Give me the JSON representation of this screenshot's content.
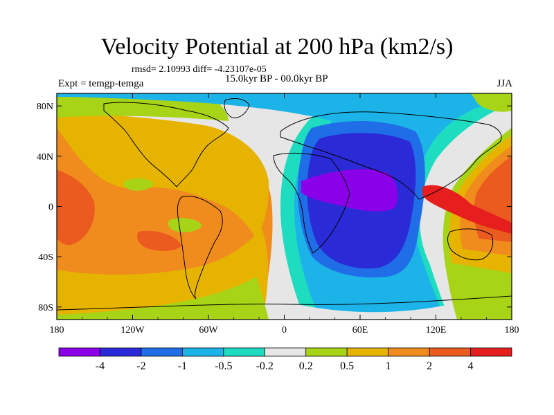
{
  "chart_data": {
    "type": "heatmap",
    "title": "Velocity Potential at 200 hPa (km2/s)",
    "stats_line": "rmsd= 2.10993 diff= -4.23107e-05",
    "period_line": "15.0kyr BP - 00.0kyr BP",
    "experiment_label": "Expt = temgp-temga",
    "season": "JJA",
    "x_axis": {
      "range": [
        -180,
        180
      ],
      "ticks": [
        -180,
        -120,
        -60,
        0,
        60,
        120,
        180
      ],
      "tick_labels": [
        "180",
        "120W",
        "60W",
        "0",
        "60E",
        "120E",
        "180"
      ]
    },
    "y_axis": {
      "range": [
        -90,
        90
      ],
      "ticks": [
        80,
        40,
        0,
        -40,
        -80
      ],
      "tick_labels": [
        "80N",
        "40N",
        "0",
        "40S",
        "80S"
      ]
    },
    "colorbar": {
      "levels": [
        "-4",
        "-2",
        "-1",
        "-0.5",
        "-0.2",
        "0.2",
        "0.5",
        "1",
        "2",
        "4"
      ],
      "colors": [
        "#8a00e8",
        "#2a2ad6",
        "#1f6ee8",
        "#1cb4e8",
        "#1edcc0",
        "#e6e6e6",
        "#a8d418",
        "#e6b400",
        "#f08c1e",
        "#eb5a1e",
        "#e61e1e"
      ]
    },
    "features": [
      {
        "name": "Afro-Asian minimum (purple core)",
        "lon": 45,
        "lat": 10,
        "bin": "< -4"
      },
      {
        "name": "Indo-Pacific maximum",
        "lon": 130,
        "lat": 0,
        "bin": "2 to 4"
      },
      {
        "name": "Eastern Pacific maximum",
        "lon": -170,
        "lat": -10,
        "bin": "2 to 4"
      },
      {
        "name": "Near-zero band",
        "lon": -20,
        "lat": -20,
        "bin": "-0.2 to 0.2"
      }
    ]
  }
}
